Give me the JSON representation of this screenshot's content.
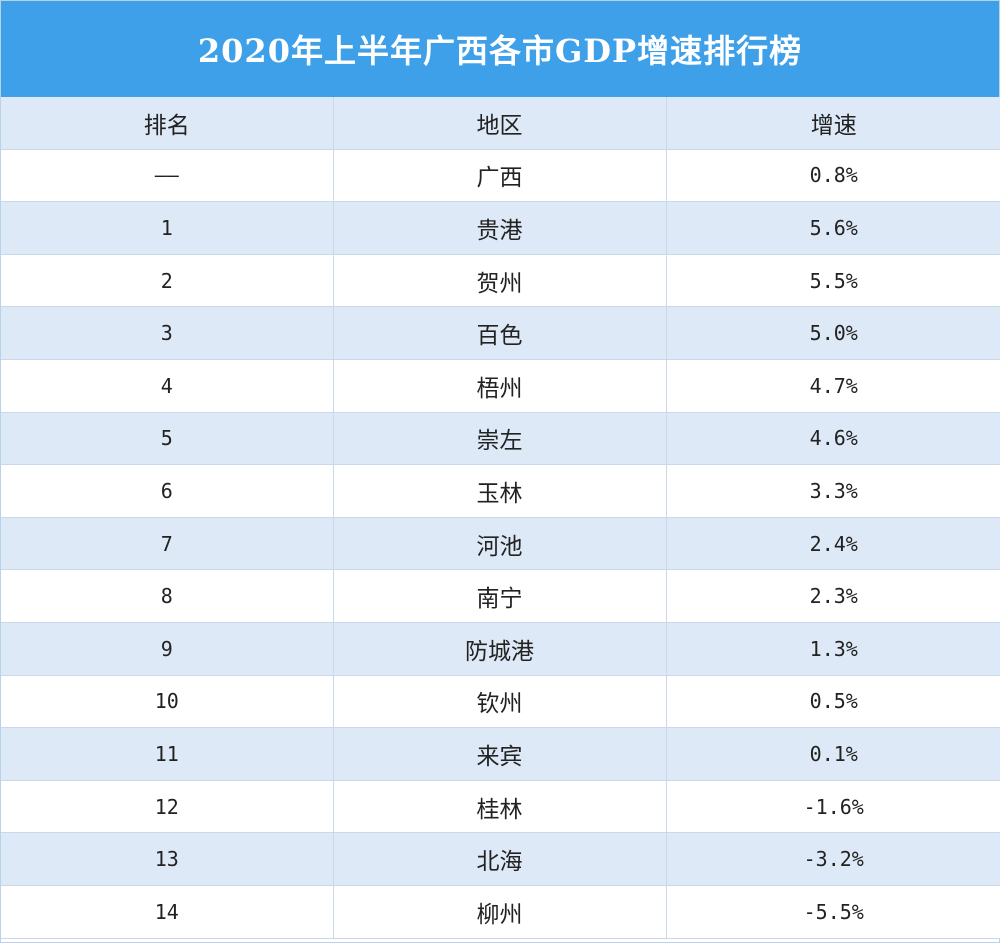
{
  "title": "2020年上半年广西各市GDP增速排行榜",
  "headers": {
    "rank": "排名",
    "region": "地区",
    "growth": "增速"
  },
  "rows": [
    {
      "rank": "——",
      "region": "广西",
      "growth": "0.8%"
    },
    {
      "rank": "1",
      "region": "贵港",
      "growth": "5.6%"
    },
    {
      "rank": "2",
      "region": "贺州",
      "growth": "5.5%"
    },
    {
      "rank": "3",
      "region": "百色",
      "growth": "5.0%"
    },
    {
      "rank": "4",
      "region": "梧州",
      "growth": "4.7%"
    },
    {
      "rank": "5",
      "region": "崇左",
      "growth": "4.6%"
    },
    {
      "rank": "6",
      "region": "玉林",
      "growth": "3.3%"
    },
    {
      "rank": "7",
      "region": "河池",
      "growth": "2.4%"
    },
    {
      "rank": "8",
      "region": "南宁",
      "growth": "2.3%"
    },
    {
      "rank": "9",
      "region": "防城港",
      "growth": "1.3%"
    },
    {
      "rank": "10",
      "region": "钦州",
      "growth": "0.5%"
    },
    {
      "rank": "11",
      "region": "来宾",
      "growth": "0.1%"
    },
    {
      "rank": "12",
      "region": "桂林",
      "growth": "-1.6%"
    },
    {
      "rank": "13",
      "region": "北海",
      "growth": "-3.2%"
    },
    {
      "rank": "14",
      "region": "柳州",
      "growth": "-5.5%"
    }
  ],
  "colors": {
    "title_bg": "#3fa0ea",
    "stripe": "#dde9f6",
    "border": "#c9d9ea"
  }
}
